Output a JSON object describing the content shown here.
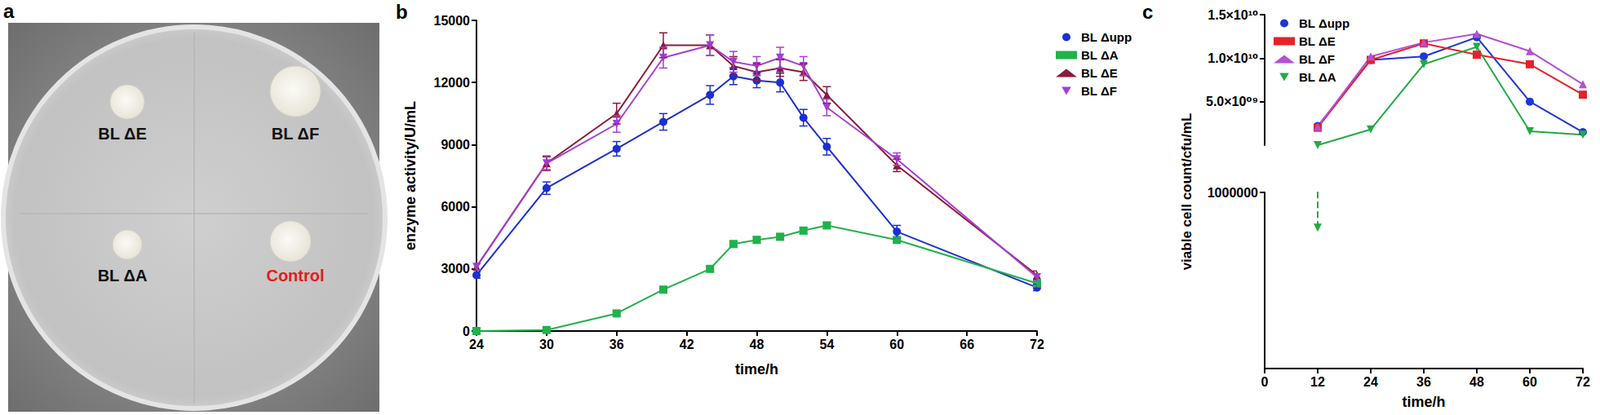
{
  "plate": {
    "panel": "a",
    "colonies": [
      {
        "label": "BL ΔE",
        "color": "#111111"
      },
      {
        "label": "BL ΔF",
        "color": "#111111"
      },
      {
        "label": "BL ΔA",
        "color": "#111111"
      },
      {
        "label": "Control",
        "color": "#e0201c"
      }
    ]
  },
  "chart_data": [
    {
      "panel": "b",
      "type": "line",
      "x_label": "time/h",
      "y_label": "enzyme activity/U/mL",
      "x": [
        24,
        30,
        36,
        40,
        44,
        46,
        48,
        50,
        52,
        54,
        60,
        72
      ],
      "xlim": [
        24,
        72
      ],
      "xticks": [
        24,
        30,
        36,
        42,
        48,
        54,
        60,
        66,
        72
      ],
      "ylim": [
        0,
        15000
      ],
      "yticks": [
        0,
        3000,
        6000,
        9000,
        12000,
        15000
      ],
      "grid": false,
      "legend": "right",
      "series": [
        {
          "name": "BL Δupp",
          "color": "#1c2fd1",
          "marker": "circle",
          "values": [
            2700,
            6900,
            8800,
            10100,
            11400,
            12300,
            12100,
            12000,
            10300,
            8900,
            4800,
            2100
          ],
          "errors": [
            150,
            300,
            350,
            400,
            450,
            400,
            350,
            450,
            400,
            400,
            300,
            150
          ]
        },
        {
          "name": "BL ΔA",
          "color": "#22b14c",
          "marker": "square",
          "values": [
            0,
            50,
            850,
            2000,
            3000,
            4200,
            4400,
            4550,
            4850,
            5100,
            4400,
            2300
          ],
          "errors": [
            50,
            50,
            80,
            100,
            100,
            150,
            150,
            150,
            150,
            150,
            100,
            100
          ]
        },
        {
          "name": "BL ΔE",
          "color": "#8c1a3a",
          "marker": "triangle",
          "values": [
            3100,
            8100,
            10500,
            13800,
            13800,
            12800,
            12500,
            12700,
            12500,
            11400,
            8000,
            2700
          ],
          "errors": [
            150,
            350,
            500,
            600,
            500,
            450,
            400,
            400,
            400,
            400,
            300,
            200
          ]
        },
        {
          "name": "BL ΔF",
          "color": "#a33fd6",
          "marker": "triangle_down",
          "values": [
            3100,
            8100,
            10000,
            13200,
            13800,
            13000,
            12800,
            13200,
            12800,
            10800,
            8300,
            2600
          ],
          "errors": [
            150,
            300,
            400,
            500,
            500,
            500,
            450,
            500,
            450,
            400,
            300,
            150
          ]
        }
      ]
    },
    {
      "panel": "c",
      "type": "line",
      "x_label": "time/h",
      "y_label": "viable cell count/cfu/mL",
      "x": [
        12,
        24,
        36,
        48,
        60,
        72
      ],
      "xlim": [
        0,
        72
      ],
      "xticks": [
        0,
        12,
        24,
        36,
        48,
        60,
        72
      ],
      "y_segments": [
        {
          "ylim": [
            0,
            1000000
          ],
          "yticks": [
            1000000
          ]
        },
        {
          "ylim": [
            1000000,
            15000000000
          ],
          "yticks": [
            {
              "value": 5000000000,
              "label": "5.0×10⁰⁹"
            },
            {
              "value": 10000000000,
              "label": "1.0×10¹⁰"
            },
            {
              "value": 15000000000,
              "label": "1.5×10¹⁰"
            }
          ]
        }
      ],
      "grid": false,
      "legend": "upper left",
      "series": [
        {
          "name": "BL Δupp",
          "color": "#1f36d8",
          "marker": "circle",
          "values": [
            2200000000,
            9800000000,
            10200000000,
            12400000000,
            5000000000,
            1500000000
          ]
        },
        {
          "name": "BL ΔE",
          "color": "#e8202a",
          "marker": "square",
          "values": [
            2000000000,
            9800000000,
            11700000000,
            10400000000,
            9300000000,
            5800000000
          ]
        },
        {
          "name": "BL ΔF",
          "color": "#b44fd6",
          "marker": "triangle",
          "values": [
            2100000000,
            10200000000,
            11800000000,
            12800000000,
            10800000000,
            7000000000
          ]
        },
        {
          "name": "BL ΔA",
          "color": "#22aa44",
          "marker": "triangle_down",
          "values": [
            800000,
            1800000000,
            9300000000,
            11300000000,
            1600000000,
            1200000000
          ]
        }
      ]
    }
  ]
}
